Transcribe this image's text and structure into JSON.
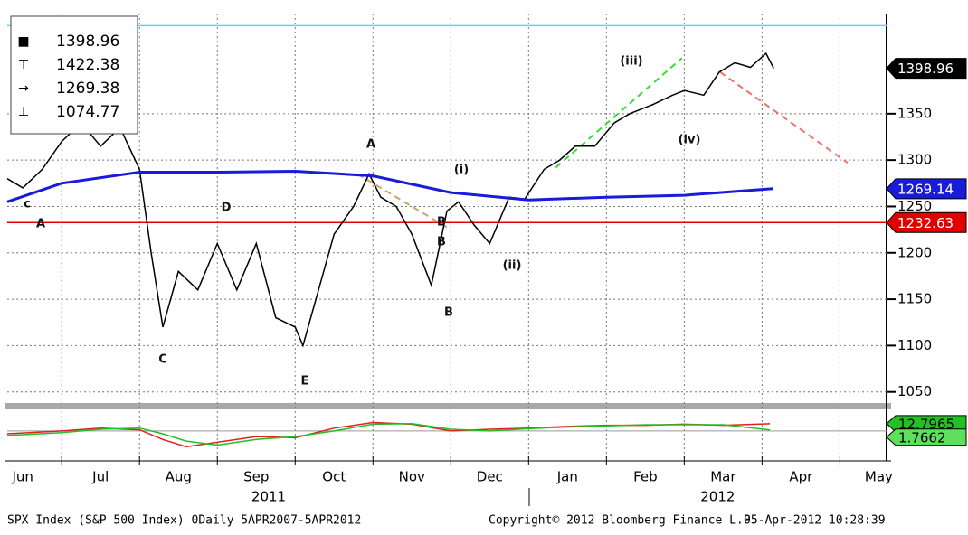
{
  "chart_data": [
    {
      "type": "line",
      "legend_values": [
        1398.96,
        1422.38,
        1269.38,
        1074.77
      ],
      "xlim": [
        0.3,
        11.6
      ],
      "xticks": [
        {
          "value": 0.5,
          "label": "Jun"
        },
        {
          "value": 1.5,
          "label": "Jul"
        },
        {
          "value": 2.5,
          "label": "Aug"
        },
        {
          "value": 3.5,
          "label": "Sep"
        },
        {
          "value": 4.5,
          "label": "Oct"
        },
        {
          "value": 5.5,
          "label": "Nov"
        },
        {
          "value": 6.5,
          "label": "Dec"
        },
        {
          "value": 7.5,
          "label": "Jan"
        },
        {
          "value": 8.5,
          "label": "Feb"
        },
        {
          "value": 9.5,
          "label": "Mar"
        },
        {
          "value": 10.5,
          "label": "Apr"
        },
        {
          "value": 11.5,
          "label": "May"
        }
      ],
      "year_labels": [
        {
          "value": 3.66,
          "label": "2011"
        },
        {
          "value": 9.43,
          "label": "2012"
        }
      ],
      "ylim": [
        1039,
        1458
      ],
      "yticks": [
        1050,
        1100,
        1150,
        1200,
        1250,
        1300,
        1350
      ],
      "grid": true,
      "series": [
        {
          "color": "#000000",
          "x": [
            0.3,
            0.5,
            0.75,
            1.0,
            1.25,
            1.5,
            1.75,
            2.0,
            2.15,
            2.3,
            2.5,
            2.75,
            3.0,
            3.25,
            3.5,
            3.75,
            4.0,
            4.1,
            4.3,
            4.5,
            4.75,
            4.95,
            5.1,
            5.3,
            5.5,
            5.75,
            5.95,
            6.1,
            6.3,
            6.5,
            6.75,
            6.95,
            7.2,
            7.4,
            7.6,
            7.85,
            8.1,
            8.3,
            8.6,
            8.85,
            9.0,
            9.25,
            9.45,
            9.65,
            9.85,
            10.05,
            10.15
          ],
          "values": [
            1280,
            1270,
            1290,
            1320,
            1340,
            1315,
            1335,
            1290,
            1200,
            1120,
            1180,
            1160,
            1210,
            1160,
            1210,
            1130,
            1120,
            1100,
            1160,
            1220,
            1250,
            1285,
            1260,
            1250,
            1220,
            1165,
            1245,
            1255,
            1230,
            1210,
            1260,
            1258,
            1290,
            1300,
            1315,
            1315,
            1340,
            1350,
            1360,
            1370,
            1375,
            1370,
            1395,
            1405,
            1400,
            1415,
            1398.96
          ]
        },
        {
          "color": "#1a1adb",
          "x": [
            0.3,
            1.0,
            2.0,
            3.0,
            4.0,
            5.0,
            6.0,
            7.0,
            8.0,
            9.0,
            10.14
          ],
          "values": [
            1255,
            1275,
            1287,
            1287,
            1288,
            1283,
            1265,
            1257,
            1260,
            1262,
            1269.14
          ]
        }
      ],
      "reference_lines": [
        {
          "value": 1232.63,
          "color": "#e00000"
        },
        {
          "value": 1445,
          "color": "#5fd6f0"
        }
      ],
      "trend_lines": [
        {
          "color": "#c9a46a",
          "x": [
            4.8,
            6.0
          ],
          "values": [
            1285,
            1225
          ]
        },
        {
          "color": "#33dd33",
          "x": [
            7.35,
            8.97
          ],
          "values": [
            1292,
            1410
          ]
        },
        {
          "color": "#f07070",
          "x": [
            9.46,
            11.1
          ],
          "values": [
            1395,
            1297
          ]
        }
      ],
      "annotations": [
        "c",
        "A",
        "C",
        "D",
        "E",
        "A",
        "B",
        "B",
        "B",
        "(i)",
        "(ii)",
        "(iii)",
        "(iv)"
      ]
    },
    {
      "type": "line",
      "xlim": [
        0.3,
        11.6
      ],
      "ylim": [
        -45,
        35
      ],
      "series": [
        {
          "color": "#e02020",
          "x": [
            0.3,
            1,
            1.5,
            2,
            2.3,
            2.6,
            3,
            3.5,
            4,
            4.5,
            5,
            5.5,
            6,
            6.5,
            7,
            7.5,
            8,
            8.5,
            9,
            9.5,
            10.1
          ],
          "values": [
            -5,
            0,
            5,
            2,
            -15,
            -28,
            -20,
            -10,
            -12,
            5,
            15,
            12,
            0,
            3,
            5,
            8,
            10,
            10,
            12,
            10,
            12.7965
          ]
        },
        {
          "color": "#22c022",
          "x": [
            0.3,
            1,
            1.5,
            2,
            2.3,
            2.6,
            3,
            3.5,
            4,
            4.5,
            5,
            5.5,
            6,
            6.5,
            7,
            7.5,
            8,
            8.5,
            9,
            9.5,
            10.1
          ],
          "values": [
            -8,
            -3,
            3,
            5,
            -5,
            -18,
            -25,
            -15,
            -10,
            0,
            12,
            13,
            3,
            0,
            4,
            7,
            9,
            11,
            11,
            11,
            1.7662
          ]
        }
      ]
    }
  ],
  "footer": {
    "left": "SPX Index (S&P 500 Index) 0Daily 5APR2007-5APR2012",
    "middle": "Copyright© 2012 Bloomberg Finance L.P.",
    "right": "05-Apr-2012 10:28:39"
  }
}
